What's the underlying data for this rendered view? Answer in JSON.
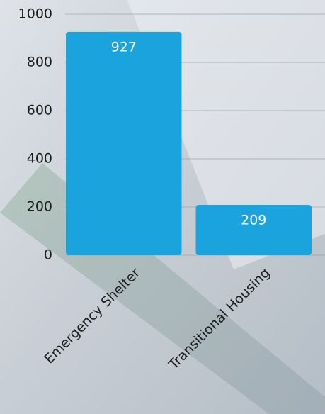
{
  "chart_data": {
    "type": "bar",
    "categories": [
      "Emergency Shelter",
      "Transitional Housing"
    ],
    "values": [
      927,
      209
    ],
    "color": "#1ba3dd",
    "ylim": [
      0,
      1000
    ],
    "yticks": [
      0,
      200,
      400,
      600,
      800,
      1000
    ],
    "grid": true
  }
}
